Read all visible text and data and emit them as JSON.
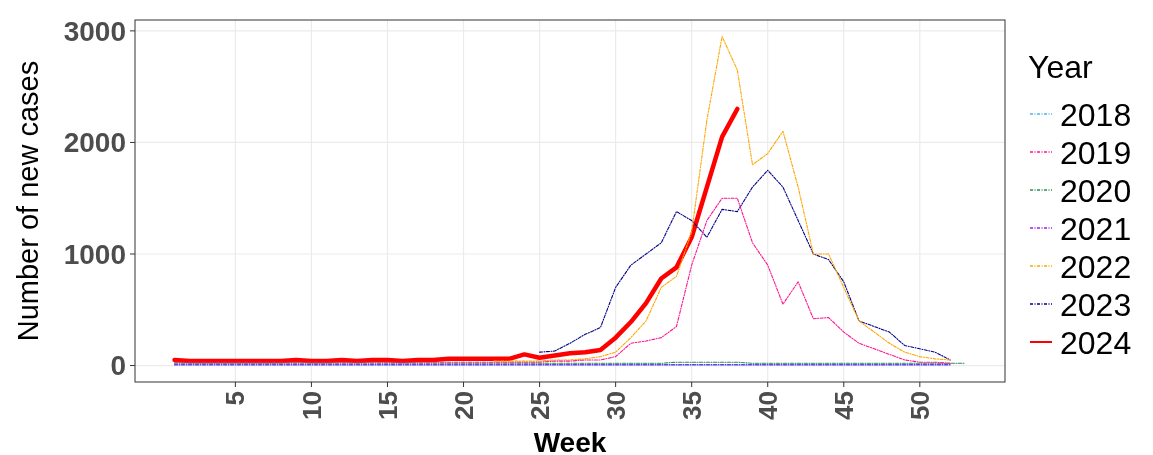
{
  "chart_data": {
    "type": "line",
    "xlabel": "Week",
    "ylabel": "Number of new cases",
    "legend_title": "Year",
    "legend": "right",
    "grid": true,
    "xlim": [
      -1.6,
      55.6
    ],
    "xticks": [
      5,
      10,
      15,
      20,
      25,
      30,
      35,
      40,
      45,
      50
    ],
    "ylim": [
      -147.5,
      3097.5
    ],
    "yticks": [
      0,
      1000,
      2000,
      3000
    ],
    "x": [
      1,
      2,
      3,
      4,
      5,
      6,
      7,
      8,
      9,
      10,
      11,
      12,
      13,
      14,
      15,
      16,
      17,
      18,
      19,
      20,
      21,
      22,
      23,
      24,
      25,
      26,
      27,
      28,
      29,
      30,
      31,
      32,
      33,
      34,
      35,
      36,
      37,
      38,
      39,
      40,
      41,
      42,
      43,
      44,
      45,
      46,
      47,
      48,
      49,
      50,
      51,
      52
    ],
    "series": [
      {
        "name": "2018",
        "color": "#56b4e9",
        "line_style": "dashed",
        "values": [
          0,
          0,
          0,
          0,
          0,
          0,
          0,
          0,
          0,
          0,
          0,
          0,
          0,
          0,
          0,
          0,
          0,
          0,
          0,
          0,
          0,
          0,
          0,
          0,
          0,
          0,
          0,
          0,
          0,
          0,
          0,
          0,
          0,
          0,
          0,
          0,
          0,
          0,
          0,
          0,
          0,
          0,
          0,
          0,
          0,
          0,
          0,
          0,
          0,
          0,
          0,
          0
        ]
      },
      {
        "name": "2019",
        "color": "#ff1493",
        "line_style": "dashed",
        "values": [
          30,
          30,
          30,
          30,
          30,
          30,
          30,
          30,
          30,
          30,
          30,
          30,
          30,
          30,
          30,
          30,
          30,
          30,
          30,
          30,
          30,
          30,
          30,
          30,
          30,
          40,
          40,
          50,
          50,
          80,
          200,
          220,
          250,
          350,
          900,
          1300,
          1500,
          1500,
          1100,
          900,
          550,
          750,
          420,
          430,
          300,
          200,
          150,
          100,
          50,
          30,
          30,
          20
        ]
      },
      {
        "name": "2020",
        "color": "#2e8b57",
        "line_style": "dashed",
        "x": [
          1,
          2,
          3,
          4,
          5,
          6,
          7,
          8,
          9,
          10,
          11,
          12,
          13,
          14,
          15,
          16,
          17,
          18,
          19,
          20,
          21,
          22,
          23,
          24,
          25,
          26,
          27,
          28,
          29,
          30,
          31,
          32,
          33,
          34,
          35,
          36,
          37,
          38,
          39,
          40,
          41,
          42,
          43,
          44,
          45,
          46,
          47,
          48,
          49,
          50,
          51,
          52,
          53
        ],
        "values": [
          20,
          20,
          20,
          20,
          20,
          20,
          20,
          20,
          20,
          20,
          20,
          20,
          20,
          20,
          20,
          20,
          20,
          20,
          20,
          20,
          20,
          20,
          20,
          20,
          20,
          20,
          20,
          20,
          20,
          20,
          20,
          20,
          20,
          30,
          30,
          30,
          30,
          30,
          20,
          20,
          20,
          20,
          20,
          20,
          20,
          20,
          20,
          20,
          20,
          20,
          20,
          20,
          20
        ]
      },
      {
        "name": "2021",
        "color": "#a020f0",
        "line_style": "dashed",
        "values": [
          10,
          10,
          10,
          10,
          10,
          10,
          10,
          10,
          10,
          10,
          10,
          10,
          10,
          10,
          10,
          10,
          10,
          10,
          10,
          10,
          10,
          10,
          10,
          10,
          10,
          10,
          10,
          10,
          10,
          10,
          10,
          10,
          10,
          10,
          10,
          10,
          10,
          10,
          10,
          10,
          10,
          10,
          10,
          10,
          10,
          10,
          10,
          10,
          10,
          10,
          10,
          10
        ]
      },
      {
        "name": "2022",
        "color": "#ffa500",
        "line_style": "dashed",
        "values": [
          null,
          null,
          null,
          null,
          null,
          null,
          null,
          null,
          null,
          null,
          null,
          null,
          null,
          null,
          null,
          null,
          null,
          null,
          null,
          null,
          null,
          40,
          40,
          40,
          40,
          50,
          50,
          60,
          80,
          120,
          250,
          400,
          700,
          800,
          1200,
          2200,
          2950,
          2650,
          1800,
          1900,
          2100,
          1600,
          1000,
          1000,
          700,
          400,
          300,
          200,
          120,
          80,
          60,
          50
        ]
      },
      {
        "name": "2023",
        "color": "#00008b",
        "line_style": "dashed",
        "values": [
          null,
          null,
          null,
          null,
          null,
          null,
          null,
          null,
          null,
          null,
          null,
          null,
          null,
          null,
          null,
          null,
          null,
          null,
          null,
          null,
          null,
          null,
          null,
          null,
          120,
          130,
          200,
          280,
          340,
          700,
          900,
          1000,
          1100,
          1380,
          1300,
          1150,
          1400,
          1380,
          1600,
          1750,
          1600,
          1300,
          1000,
          950,
          750,
          400,
          350,
          300,
          180,
          150,
          120,
          50
        ]
      },
      {
        "name": "2024",
        "color": "#ff0000",
        "line_style": "solid",
        "x": [
          1,
          2,
          3,
          4,
          5,
          6,
          7,
          8,
          9,
          10,
          11,
          12,
          13,
          14,
          15,
          16,
          17,
          18,
          19,
          20,
          21,
          22,
          23,
          24,
          25,
          26,
          27,
          28,
          29,
          30,
          31,
          32,
          33,
          34,
          35,
          36,
          37,
          38
        ],
        "values": [
          50,
          40,
          40,
          40,
          40,
          40,
          40,
          40,
          50,
          40,
          40,
          50,
          40,
          50,
          50,
          40,
          50,
          50,
          60,
          60,
          60,
          60,
          60,
          100,
          70,
          90,
          110,
          120,
          140,
          250,
          390,
          560,
          780,
          880,
          1150,
          1600,
          2050,
          2300
        ]
      }
    ]
  }
}
